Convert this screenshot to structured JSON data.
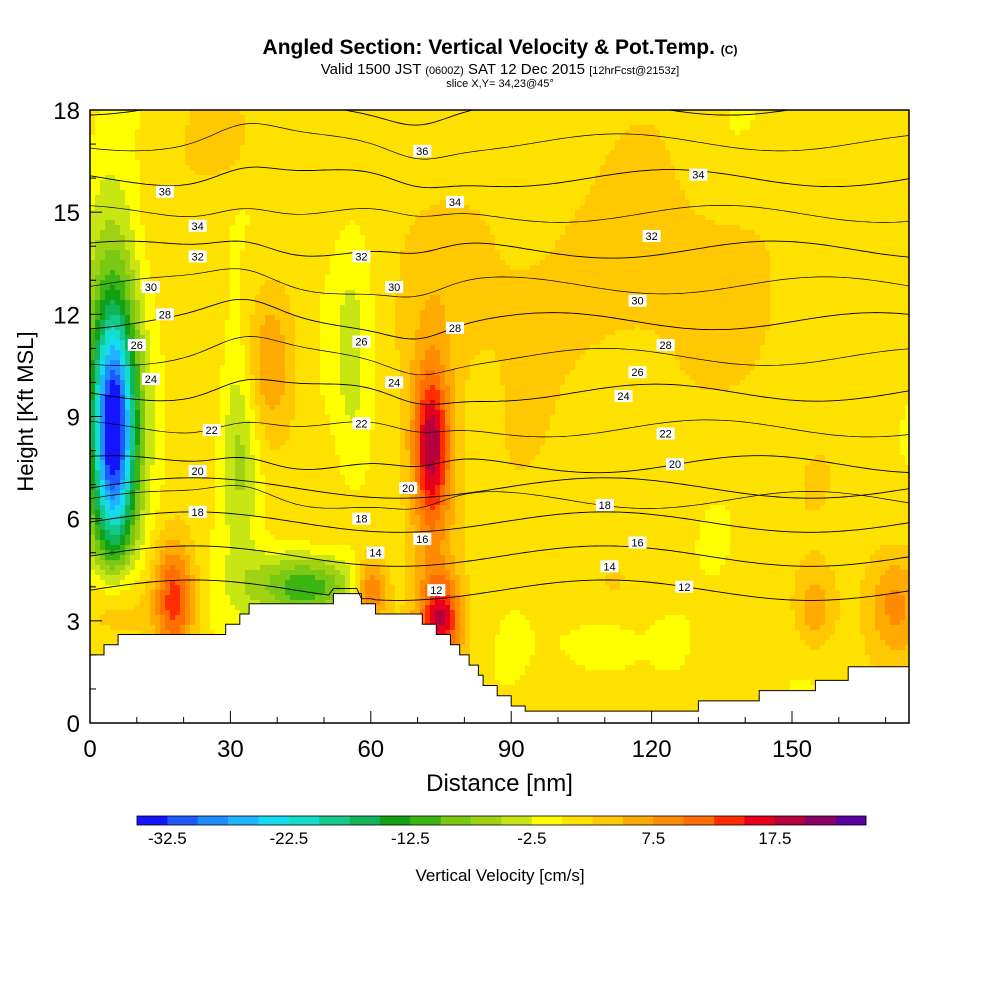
{
  "title": {
    "main": "Angled Section: Vertical Velocity & Pot.Temp.",
    "main_unit": "(C)",
    "valid": "Valid 1500 JST",
    "valid_utc": "(0600Z)",
    "valid_date": "SAT 12 Dec 2015",
    "forecast": "[12hrFcst@2153z]",
    "slice": "slice X,Y= 34,23@45°"
  },
  "colorbar": {
    "label": "Vertical Velocity [cm/s]",
    "tick_labels": [
      "-32.5",
      "-22.5",
      "-12.5",
      "-2.5",
      "7.5",
      "17.5"
    ],
    "tick_values": [
      -32.5,
      -22.5,
      -12.5,
      -2.5,
      7.5,
      17.5
    ],
    "levels": [
      -35,
      -32.5,
      -30,
      -27.5,
      -25,
      -22.5,
      -20,
      -17.5,
      -15,
      -12.5,
      -10,
      -7.5,
      -5,
      -2.5,
      0,
      2.5,
      5,
      7.5,
      10,
      12.5,
      15,
      17.5,
      20,
      22.5
    ],
    "colors": [
      "#1414ff",
      "#1e5aff",
      "#1f8cff",
      "#1fb4ff",
      "#14dcf0",
      "#14dcc8",
      "#14c88c",
      "#10b45a",
      "#14a014",
      "#3cb414",
      "#78c814",
      "#a0d214",
      "#c8e614",
      "#ffff00",
      "#ffe100",
      "#ffc800",
      "#ffaa00",
      "#ff8c00",
      "#ff6e00",
      "#ff2d00",
      "#e6001e",
      "#b4003c",
      "#8c0064",
      "#5a00a0"
    ]
  },
  "chart_data": {
    "type": "heatmap",
    "title": "Angled Section: Vertical Velocity & Pot.Temp. (C)",
    "xlabel": "Distance [nm]",
    "ylabel": "Height [Kft MSL]",
    "xlim": [
      0,
      175
    ],
    "ylim": [
      0,
      18
    ],
    "x_ticks": [
      0,
      30,
      60,
      90,
      120,
      150
    ],
    "y_ticks": [
      0,
      3,
      6,
      9,
      12,
      15,
      18
    ],
    "fill_field": "Vertical Velocity [cm/s]",
    "contour_field": "Potential Temperature (C)",
    "contour_levels": [
      12,
      14,
      16,
      18,
      20,
      22,
      24,
      26,
      28,
      30,
      32,
      34,
      36
    ],
    "contour_labels": [
      {
        "x": 74,
        "y": 3.9,
        "text": "12"
      },
      {
        "x": 127,
        "y": 4.0,
        "text": "12"
      },
      {
        "x": 61,
        "y": 5.0,
        "text": "14"
      },
      {
        "x": 111,
        "y": 4.6,
        "text": "14"
      },
      {
        "x": 71,
        "y": 5.4,
        "text": "16"
      },
      {
        "x": 117,
        "y": 5.3,
        "text": "16"
      },
      {
        "x": 23,
        "y": 6.2,
        "text": "18"
      },
      {
        "x": 58,
        "y": 6.0,
        "text": "18"
      },
      {
        "x": 110,
        "y": 6.4,
        "text": "18"
      },
      {
        "x": 23,
        "y": 7.4,
        "text": "20"
      },
      {
        "x": 68,
        "y": 6.9,
        "text": "20"
      },
      {
        "x": 125,
        "y": 7.6,
        "text": "20"
      },
      {
        "x": 26,
        "y": 8.6,
        "text": "22"
      },
      {
        "x": 58,
        "y": 8.8,
        "text": "22"
      },
      {
        "x": 123,
        "y": 8.5,
        "text": "22"
      },
      {
        "x": 13,
        "y": 10.1,
        "text": "24"
      },
      {
        "x": 65,
        "y": 10.0,
        "text": "24"
      },
      {
        "x": 114,
        "y": 9.6,
        "text": "24"
      },
      {
        "x": 10,
        "y": 11.1,
        "text": "26"
      },
      {
        "x": 58,
        "y": 11.2,
        "text": "26"
      },
      {
        "x": 117,
        "y": 10.3,
        "text": "26"
      },
      {
        "x": 16,
        "y": 12.0,
        "text": "28"
      },
      {
        "x": 78,
        "y": 11.6,
        "text": "28"
      },
      {
        "x": 123,
        "y": 11.1,
        "text": "28"
      },
      {
        "x": 13,
        "y": 12.8,
        "text": "30"
      },
      {
        "x": 65,
        "y": 12.8,
        "text": "30"
      },
      {
        "x": 117,
        "y": 12.4,
        "text": "30"
      },
      {
        "x": 23,
        "y": 13.7,
        "text": "32"
      },
      {
        "x": 58,
        "y": 13.7,
        "text": "32"
      },
      {
        "x": 120,
        "y": 14.3,
        "text": "32"
      },
      {
        "x": 23,
        "y": 14.6,
        "text": "34"
      },
      {
        "x": 78,
        "y": 15.3,
        "text": "34"
      },
      {
        "x": 130,
        "y": 16.1,
        "text": "34"
      },
      {
        "x": 16,
        "y": 15.6,
        "text": "36"
      },
      {
        "x": 71,
        "y": 16.8,
        "text": "36"
      }
    ],
    "terrain": [
      [
        0,
        2.0
      ],
      [
        3,
        2.0
      ],
      [
        3,
        2.3
      ],
      [
        6,
        2.3
      ],
      [
        6,
        2.6
      ],
      [
        29,
        2.6
      ],
      [
        29,
        2.9
      ],
      [
        32,
        2.9
      ],
      [
        32,
        3.2
      ],
      [
        34,
        3.2
      ],
      [
        34,
        3.5
      ],
      [
        52,
        3.5
      ],
      [
        52,
        3.8
      ],
      [
        58,
        3.8
      ],
      [
        58,
        3.5
      ],
      [
        61,
        3.5
      ],
      [
        61,
        3.2
      ],
      [
        71,
        3.2
      ],
      [
        71,
        2.9
      ],
      [
        74,
        2.9
      ],
      [
        74,
        2.6
      ],
      [
        77,
        2.6
      ],
      [
        77,
        2.3
      ],
      [
        79,
        2.3
      ],
      [
        79,
        2.0
      ],
      [
        81,
        2.0
      ],
      [
        81,
        1.7
      ],
      [
        83,
        1.7
      ],
      [
        83,
        1.4
      ],
      [
        84,
        1.4
      ],
      [
        84,
        1.1
      ],
      [
        87,
        1.1
      ],
      [
        87,
        0.8
      ],
      [
        90,
        0.8
      ],
      [
        90,
        0.5
      ],
      [
        93,
        0.5
      ],
      [
        93,
        0.35
      ],
      [
        130,
        0.35
      ],
      [
        130,
        0.65
      ],
      [
        143,
        0.65
      ],
      [
        143,
        0.95
      ],
      [
        155,
        0.95
      ],
      [
        155,
        1.25
      ],
      [
        162,
        1.25
      ],
      [
        162,
        1.65
      ],
      [
        175,
        1.65
      ]
    ],
    "velocity_features": [
      {
        "x": 5,
        "y": 8.5,
        "sx": 3,
        "sy": 2.3,
        "v": -24,
        "name": "strong downdraft core"
      },
      {
        "x": 5,
        "y": 9.5,
        "sx": 4.5,
        "sy": 4.2,
        "v": -14,
        "name": "downdraft column"
      },
      {
        "x": 32,
        "y": 8.5,
        "sx": 3,
        "sy": 2.5,
        "v": -8
      },
      {
        "x": 46,
        "y": 4.0,
        "sx": 8,
        "sy": 0.7,
        "v": -14,
        "name": "lee downdraft"
      },
      {
        "x": 56,
        "y": 10.5,
        "sx": 3,
        "sy": 3,
        "v": -4
      },
      {
        "x": 18,
        "y": 3.6,
        "sx": 3,
        "sy": 1.2,
        "v": 13,
        "name": "updraft"
      },
      {
        "x": 73,
        "y": 8.2,
        "sx": 2.6,
        "sy": 1.5,
        "v": 13,
        "name": "mid-level updraft"
      },
      {
        "x": 73,
        "y": 7.0,
        "sx": 4,
        "sy": 3,
        "v": 7
      },
      {
        "x": 75,
        "y": 3.0,
        "sx": 3,
        "sy": 0.9,
        "v": 14,
        "name": "windward updraft"
      },
      {
        "x": 60,
        "y": 3.9,
        "sx": 2.5,
        "sy": 0.7,
        "v": 11
      },
      {
        "x": 38,
        "y": 10.5,
        "sx": 4,
        "sy": 1.5,
        "v": 6
      },
      {
        "x": 5,
        "y": 3.5,
        "sx": 4,
        "sy": 0.9,
        "v": 7
      },
      {
        "x": 155,
        "y": 3.3,
        "sx": 3,
        "sy": 0.8,
        "v": 6
      },
      {
        "x": 172,
        "y": 3.5,
        "sx": 4,
        "sy": 1.0,
        "v": 6
      },
      {
        "x": 110,
        "y": 2.3,
        "sx": 6,
        "sy": 0.6,
        "v": -4
      },
      {
        "x": 124,
        "y": 2.3,
        "sx": 3,
        "sy": 0.6,
        "v": -3
      },
      {
        "x": 28,
        "y": 17.2,
        "sx": 5,
        "sy": 1.0,
        "v": 4
      },
      {
        "x": 110,
        "y": 13.0,
        "sx": 25,
        "sy": 2.0,
        "v": 3
      }
    ],
    "background_velocity": 1.2
  }
}
